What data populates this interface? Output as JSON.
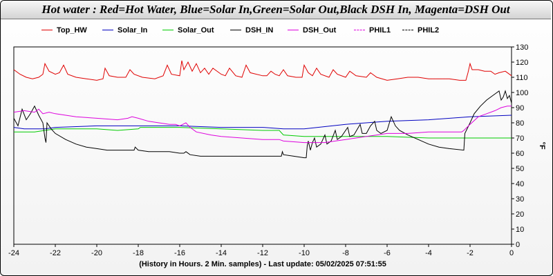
{
  "chart_data": {
    "type": "line",
    "title": "Hot water : Red=Hot Water, Blue=Solar In,Green=Solar Out,Black DSH In, Magenta=DSH Out",
    "xlabel": "(History in Hours. 2 Min. samples) - Last update: 05/02/2025 07:51:55",
    "ylabel": "°F",
    "xlim": [
      -24,
      0
    ],
    "ylim": [
      0,
      130
    ],
    "x_ticks": [
      -24,
      -22,
      -20,
      -18,
      -16,
      -14,
      -12,
      -10,
      -8,
      -6,
      -4,
      -2,
      0
    ],
    "y_ticks": [
      0,
      10,
      20,
      30,
      40,
      50,
      60,
      70,
      80,
      90,
      100,
      110,
      120,
      130
    ],
    "grid": false,
    "legend_position": "top",
    "series": [
      {
        "name": "Top_HW",
        "color": "#e00000",
        "dash": false,
        "points": [
          [
            -24,
            115
          ],
          [
            -23.7,
            112
          ],
          [
            -23.4,
            110
          ],
          [
            -23.1,
            109
          ],
          [
            -22.8,
            110
          ],
          [
            -22.6,
            112
          ],
          [
            -22.5,
            119
          ],
          [
            -22.3,
            114
          ],
          [
            -22.0,
            112
          ],
          [
            -21.8,
            113
          ],
          [
            -21.6,
            118
          ],
          [
            -21.4,
            112
          ],
          [
            -21.0,
            110
          ],
          [
            -20.5,
            109
          ],
          [
            -20.0,
            108
          ],
          [
            -19.7,
            109
          ],
          [
            -19.6,
            116
          ],
          [
            -19.4,
            111
          ],
          [
            -19.0,
            110
          ],
          [
            -18.6,
            110
          ],
          [
            -18.4,
            115
          ],
          [
            -18.2,
            112
          ],
          [
            -17.8,
            110
          ],
          [
            -17.2,
            109
          ],
          [
            -16.8,
            111
          ],
          [
            -16.6,
            118
          ],
          [
            -16.4,
            112
          ],
          [
            -16.0,
            111
          ],
          [
            -15.9,
            121
          ],
          [
            -15.8,
            115
          ],
          [
            -15.6,
            120
          ],
          [
            -15.4,
            114
          ],
          [
            -15.2,
            119
          ],
          [
            -15.0,
            113
          ],
          [
            -14.8,
            116
          ],
          [
            -14.6,
            112
          ],
          [
            -14.4,
            116
          ],
          [
            -14.0,
            112
          ],
          [
            -13.8,
            111
          ],
          [
            -13.6,
            116
          ],
          [
            -13.3,
            111
          ],
          [
            -13.0,
            110
          ],
          [
            -12.8,
            118
          ],
          [
            -12.6,
            113
          ],
          [
            -12.0,
            111
          ],
          [
            -11.8,
            111
          ],
          [
            -11.6,
            114
          ],
          [
            -11.4,
            112
          ],
          [
            -11.2,
            111
          ],
          [
            -11.0,
            115
          ],
          [
            -10.8,
            111
          ],
          [
            -10.4,
            110
          ],
          [
            -10.1,
            110
          ],
          [
            -10.0,
            118
          ],
          [
            -9.8,
            113
          ],
          [
            -9.6,
            111
          ],
          [
            -9.4,
            116
          ],
          [
            -9.2,
            112
          ],
          [
            -8.8,
            110
          ],
          [
            -8.6,
            115
          ],
          [
            -8.4,
            112
          ],
          [
            -8.0,
            110
          ],
          [
            -7.8,
            114
          ],
          [
            -7.5,
            111
          ],
          [
            -7.0,
            110
          ],
          [
            -6.8,
            113
          ],
          [
            -6.5,
            110
          ],
          [
            -6.0,
            108
          ],
          [
            -5.5,
            109
          ],
          [
            -5.0,
            110
          ],
          [
            -4.5,
            110
          ],
          [
            -4.0,
            109
          ],
          [
            -3.5,
            109
          ],
          [
            -3.0,
            109
          ],
          [
            -2.5,
            108
          ],
          [
            -2.2,
            108
          ],
          [
            -2.1,
            113
          ],
          [
            -2.0,
            119
          ],
          [
            -1.9,
            115
          ],
          [
            -1.6,
            115
          ],
          [
            -1.3,
            114
          ],
          [
            -1.0,
            114
          ],
          [
            -0.8,
            112
          ],
          [
            -0.6,
            113
          ],
          [
            -0.3,
            114
          ],
          [
            0,
            111
          ]
        ]
      },
      {
        "name": "Solar_In",
        "color": "#0000c0",
        "dash": false,
        "points": [
          [
            -24,
            77
          ],
          [
            -23.5,
            76
          ],
          [
            -23,
            76
          ],
          [
            -22.5,
            76
          ],
          [
            -22,
            77
          ],
          [
            -20,
            78
          ],
          [
            -18,
            78
          ],
          [
            -16,
            78
          ],
          [
            -14,
            77
          ],
          [
            -12,
            77
          ],
          [
            -11,
            76
          ],
          [
            -10,
            76
          ],
          [
            -8,
            79
          ],
          [
            -6,
            81
          ],
          [
            -4,
            82
          ],
          [
            -2,
            84
          ],
          [
            0,
            85
          ]
        ]
      },
      {
        "name": "Solar_Out",
        "color": "#00cc00",
        "dash": false,
        "points": [
          [
            -24,
            74
          ],
          [
            -23,
            74
          ],
          [
            -22,
            76
          ],
          [
            -20,
            76
          ],
          [
            -19,
            75
          ],
          [
            -18,
            76
          ],
          [
            -17.9,
            77
          ],
          [
            -16,
            77
          ],
          [
            -14,
            76
          ],
          [
            -12,
            75
          ],
          [
            -11.2,
            75
          ],
          [
            -11,
            72
          ],
          [
            -10,
            71
          ],
          [
            -8,
            71
          ],
          [
            -6,
            71
          ],
          [
            -4,
            70
          ],
          [
            -2,
            70
          ],
          [
            0,
            70
          ]
        ]
      },
      {
        "name": "DSH_IN",
        "color": "#000000",
        "dash": false,
        "points": [
          [
            -24,
            83
          ],
          [
            -23.8,
            78
          ],
          [
            -23.6,
            89
          ],
          [
            -23.4,
            82
          ],
          [
            -23.2,
            86
          ],
          [
            -23.0,
            91
          ],
          [
            -22.8,
            85
          ],
          [
            -22.6,
            80
          ],
          [
            -22.5,
            70
          ],
          [
            -22.45,
            67
          ],
          [
            -22.4,
            80
          ],
          [
            -22.2,
            76
          ],
          [
            -22.0,
            73
          ],
          [
            -21.5,
            69
          ],
          [
            -21.0,
            66
          ],
          [
            -20.5,
            64
          ],
          [
            -20.0,
            63
          ],
          [
            -19.5,
            62
          ],
          [
            -19.0,
            62
          ],
          [
            -18.5,
            62
          ],
          [
            -18.2,
            62
          ],
          [
            -18.15,
            64
          ],
          [
            -18.0,
            62
          ],
          [
            -17.5,
            61
          ],
          [
            -17.0,
            61
          ],
          [
            -16.5,
            61
          ],
          [
            -16.0,
            60
          ],
          [
            -15.8,
            60
          ],
          [
            -15.7,
            61
          ],
          [
            -15.5,
            59
          ],
          [
            -15.0,
            58
          ],
          [
            -14.5,
            58
          ],
          [
            -14.0,
            58
          ],
          [
            -13.5,
            58
          ],
          [
            -13.0,
            58
          ],
          [
            -12.5,
            58
          ],
          [
            -12.0,
            58
          ],
          [
            -11.5,
            58
          ],
          [
            -11.1,
            58
          ],
          [
            -11.05,
            61
          ],
          [
            -11.0,
            59
          ],
          [
            -10.5,
            58
          ],
          [
            -10.0,
            57
          ],
          [
            -9.9,
            57
          ],
          [
            -9.85,
            65
          ],
          [
            -9.8,
            68
          ],
          [
            -9.7,
            62
          ],
          [
            -9.6,
            67
          ],
          [
            -9.5,
            70
          ],
          [
            -9.4,
            64
          ],
          [
            -9.2,
            66
          ],
          [
            -9.0,
            72
          ],
          [
            -8.9,
            66
          ],
          [
            -8.7,
            68
          ],
          [
            -8.5,
            75
          ],
          [
            -8.4,
            69
          ],
          [
            -8.2,
            71
          ],
          [
            -7.9,
            77
          ],
          [
            -7.8,
            71
          ],
          [
            -7.6,
            72
          ],
          [
            -7.3,
            79
          ],
          [
            -7.2,
            73
          ],
          [
            -7.0,
            73
          ],
          [
            -6.8,
            78
          ],
          [
            -6.6,
            81
          ],
          [
            -6.5,
            75
          ],
          [
            -6.3,
            73
          ],
          [
            -6.0,
            75
          ],
          [
            -5.8,
            84
          ],
          [
            -5.6,
            78
          ],
          [
            -5.4,
            75
          ],
          [
            -5.0,
            72
          ],
          [
            -4.5,
            69
          ],
          [
            -4.0,
            66
          ],
          [
            -3.5,
            64
          ],
          [
            -3.0,
            63
          ],
          [
            -2.3,
            62
          ],
          [
            -2.25,
            73
          ],
          [
            -2.0,
            80
          ],
          [
            -1.8,
            86
          ],
          [
            -1.5,
            91
          ],
          [
            -1.2,
            95
          ],
          [
            -0.9,
            98
          ],
          [
            -0.6,
            101
          ],
          [
            -0.5,
            95
          ],
          [
            -0.4,
            97
          ],
          [
            -0.3,
            101
          ],
          [
            -0.2,
            96
          ],
          [
            -0.1,
            98
          ],
          [
            0,
            93
          ]
        ]
      },
      {
        "name": "DSH_Out",
        "color": "#dd00dd",
        "dash": false,
        "points": [
          [
            -24,
            87
          ],
          [
            -23.5,
            88
          ],
          [
            -23,
            87
          ],
          [
            -22.8,
            89
          ],
          [
            -22.6,
            86
          ],
          [
            -22.3,
            87
          ],
          [
            -22,
            86
          ],
          [
            -21.5,
            85
          ],
          [
            -21,
            84
          ],
          [
            -20,
            83
          ],
          [
            -19,
            82
          ],
          [
            -18.5,
            83
          ],
          [
            -18.3,
            84
          ],
          [
            -18,
            83
          ],
          [
            -17.5,
            81
          ],
          [
            -17,
            80
          ],
          [
            -16.5,
            79
          ],
          [
            -16.2,
            79
          ],
          [
            -16.0,
            78
          ],
          [
            -15.7,
            80
          ],
          [
            -15.5,
            77
          ],
          [
            -15.2,
            74
          ],
          [
            -14.5,
            72
          ],
          [
            -14,
            71
          ],
          [
            -13,
            70
          ],
          [
            -12,
            69
          ],
          [
            -11.2,
            69
          ],
          [
            -11,
            68
          ],
          [
            -10,
            67
          ],
          [
            -9.5,
            67
          ],
          [
            -9,
            67
          ],
          [
            -8.5,
            68
          ],
          [
            -8,
            69
          ],
          [
            -7.5,
            70
          ],
          [
            -7,
            71
          ],
          [
            -6.5,
            72
          ],
          [
            -6,
            73
          ],
          [
            -5,
            73
          ],
          [
            -4,
            74
          ],
          [
            -3,
            74
          ],
          [
            -2.4,
            74
          ],
          [
            -2.3,
            75
          ],
          [
            -2.0,
            79
          ],
          [
            -1.6,
            84
          ],
          [
            -1.2,
            86
          ],
          [
            -0.8,
            88
          ],
          [
            -0.5,
            90
          ],
          [
            -0.2,
            91
          ],
          [
            0,
            91
          ]
        ]
      },
      {
        "name": "PHIL1",
        "color": "#dd00dd",
        "dash": true,
        "points": []
      },
      {
        "name": "PHIL2",
        "color": "#000000",
        "dash": true,
        "points": []
      }
    ]
  }
}
